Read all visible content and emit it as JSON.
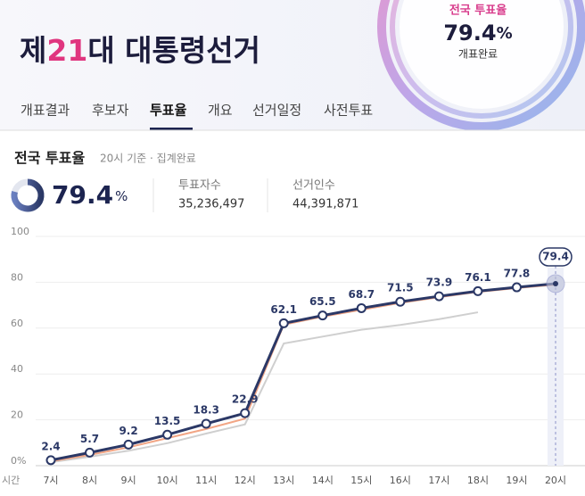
{
  "header": {
    "title_prefix": "제",
    "title_number": "21",
    "title_suffix": "대 대통령선거",
    "summary_label": "전국 투표율",
    "summary_value": 79.4,
    "summary_unit": "%",
    "summary_status": "개표완료"
  },
  "tabs": {
    "items": [
      "개표결과",
      "후보자",
      "투표율",
      "개요",
      "선거일정",
      "사전투표"
    ],
    "active": 2
  },
  "section": {
    "title": "전국 투표율",
    "subtitle": "20시 기준 · 집계완료",
    "rate": 79.4,
    "rate_unit": "%",
    "stats": [
      {
        "label": "투표자수",
        "value": "35,236,497"
      },
      {
        "label": "선거인수",
        "value": "44,391,871"
      }
    ]
  },
  "chart_data": {
    "type": "line",
    "x_label": "시간",
    "categories": [
      "7시",
      "8시",
      "9시",
      "10시",
      "11시",
      "12시",
      "13시",
      "14시",
      "15시",
      "16시",
      "17시",
      "18시",
      "19시",
      "20시"
    ],
    "series": [
      {
        "color": "#cfcfcf",
        "values": [
          1.5,
          3.9,
          6.5,
          9.8,
          14.0,
          18.0,
          53.3,
          56.3,
          59.3,
          61.4,
          63.9,
          66.9,
          null,
          null
        ]
      },
      {
        "color": "#f2a584",
        "values": [
          1.9,
          4.7,
          8.0,
          12.0,
          16.0,
          20.5,
          61.5,
          65.0,
          68.0,
          71.0,
          73.5,
          75.8,
          77.5,
          79.0
        ]
      },
      {
        "color": "#2b3866",
        "values": [
          2.4,
          5.7,
          9.2,
          13.5,
          18.3,
          22.9,
          62.1,
          65.5,
          68.7,
          71.5,
          73.9,
          76.1,
          77.8,
          79.4
        ]
      }
    ],
    "ylim": [
      0,
      100
    ],
    "yticks": [
      {
        "value": 0,
        "label": "0%"
      },
      20,
      40,
      60,
      80,
      100
    ],
    "grid": true
  }
}
